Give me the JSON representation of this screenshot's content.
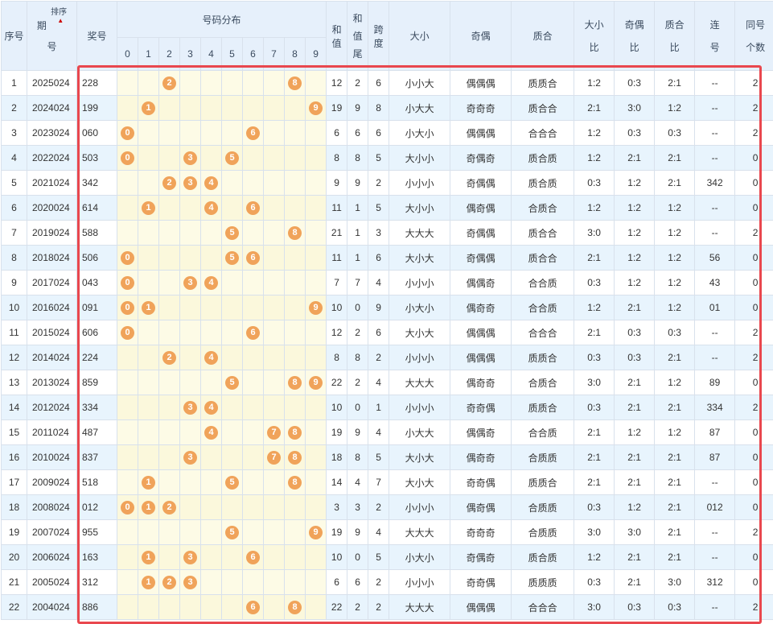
{
  "headers": {
    "seq": "序号",
    "period_a": "期",
    "period_b": "号",
    "sort": "排序",
    "prize": "奖号",
    "dist": "号码分布",
    "digits": [
      "0",
      "1",
      "2",
      "3",
      "4",
      "5",
      "6",
      "7",
      "8",
      "9"
    ],
    "sum_a": "和",
    "sum_b": "值",
    "sumtail_a": "和",
    "sumtail_b": "值",
    "sumtail_c": "尾",
    "span_a": "跨",
    "span_b": "度",
    "bigsmall": "大小",
    "oddeven": "奇偶",
    "primecomp": "质合",
    "bsr_a": "大小",
    "bsr_b": "比",
    "oer_a": "奇偶",
    "oer_b": "比",
    "pcr_a": "质合",
    "pcr_b": "比",
    "consec_a": "连",
    "consec_b": "号",
    "same_a": "同号",
    "same_b": "个数"
  },
  "colors": {
    "ball": "#f0a35a",
    "frame": "#e9474e",
    "header_bg": "#e6f0fb",
    "alt_row": "#e8f4fd",
    "dist_bg": "#fdfbe6"
  },
  "rows": [
    {
      "seq": "1",
      "period": "2025024",
      "prize": "228",
      "digits": [
        2,
        8
      ],
      "sum": "12",
      "tail": "2",
      "span": "6",
      "bs": "小小大",
      "oe": "偶偶偶",
      "pc": "质质合",
      "bsr": "1:2",
      "oer": "0:3",
      "pcr": "2:1",
      "consec": "--",
      "same": "2"
    },
    {
      "seq": "2",
      "period": "2024024",
      "prize": "199",
      "digits": [
        1,
        9
      ],
      "sum": "19",
      "tail": "9",
      "span": "8",
      "bs": "小大大",
      "oe": "奇奇奇",
      "pc": "质合合",
      "bsr": "2:1",
      "oer": "3:0",
      "pcr": "1:2",
      "consec": "--",
      "same": "2"
    },
    {
      "seq": "3",
      "period": "2023024",
      "prize": "060",
      "digits": [
        0,
        6
      ],
      "sum": "6",
      "tail": "6",
      "span": "6",
      "bs": "小大小",
      "oe": "偶偶偶",
      "pc": "合合合",
      "bsr": "1:2",
      "oer": "0:3",
      "pcr": "0:3",
      "consec": "--",
      "same": "2"
    },
    {
      "seq": "4",
      "period": "2022024",
      "prize": "503",
      "digits": [
        0,
        3,
        5
      ],
      "sum": "8",
      "tail": "8",
      "span": "5",
      "bs": "大小小",
      "oe": "奇偶奇",
      "pc": "质合质",
      "bsr": "1:2",
      "oer": "2:1",
      "pcr": "2:1",
      "consec": "--",
      "same": "0"
    },
    {
      "seq": "5",
      "period": "2021024",
      "prize": "342",
      "digits": [
        2,
        3,
        4
      ],
      "sum": "9",
      "tail": "9",
      "span": "2",
      "bs": "小小小",
      "oe": "奇偶偶",
      "pc": "质合质",
      "bsr": "0:3",
      "oer": "1:2",
      "pcr": "2:1",
      "consec": "342",
      "same": "0"
    },
    {
      "seq": "6",
      "period": "2020024",
      "prize": "614",
      "digits": [
        1,
        4,
        6
      ],
      "sum": "11",
      "tail": "1",
      "span": "5",
      "bs": "大小小",
      "oe": "偶奇偶",
      "pc": "合质合",
      "bsr": "1:2",
      "oer": "1:2",
      "pcr": "1:2",
      "consec": "--",
      "same": "0"
    },
    {
      "seq": "7",
      "period": "2019024",
      "prize": "588",
      "digits": [
        5,
        8
      ],
      "sum": "21",
      "tail": "1",
      "span": "3",
      "bs": "大大大",
      "oe": "奇偶偶",
      "pc": "质合合",
      "bsr": "3:0",
      "oer": "1:2",
      "pcr": "1:2",
      "consec": "--",
      "same": "2"
    },
    {
      "seq": "8",
      "period": "2018024",
      "prize": "506",
      "digits": [
        0,
        5,
        6
      ],
      "sum": "11",
      "tail": "1",
      "span": "6",
      "bs": "大小大",
      "oe": "奇偶偶",
      "pc": "质合合",
      "bsr": "2:1",
      "oer": "1:2",
      "pcr": "1:2",
      "consec": "56",
      "same": "0"
    },
    {
      "seq": "9",
      "period": "2017024",
      "prize": "043",
      "digits": [
        0,
        3,
        4
      ],
      "sum": "7",
      "tail": "7",
      "span": "4",
      "bs": "小小小",
      "oe": "偶偶奇",
      "pc": "合合质",
      "bsr": "0:3",
      "oer": "1:2",
      "pcr": "1:2",
      "consec": "43",
      "same": "0"
    },
    {
      "seq": "10",
      "period": "2016024",
      "prize": "091",
      "digits": [
        0,
        1,
        9
      ],
      "sum": "10",
      "tail": "0",
      "span": "9",
      "bs": "小大小",
      "oe": "偶奇奇",
      "pc": "合合质",
      "bsr": "1:2",
      "oer": "2:1",
      "pcr": "1:2",
      "consec": "01",
      "same": "0"
    },
    {
      "seq": "11",
      "period": "2015024",
      "prize": "606",
      "digits": [
        0,
        6
      ],
      "sum": "12",
      "tail": "2",
      "span": "6",
      "bs": "大小大",
      "oe": "偶偶偶",
      "pc": "合合合",
      "bsr": "2:1",
      "oer": "0:3",
      "pcr": "0:3",
      "consec": "--",
      "same": "2"
    },
    {
      "seq": "12",
      "period": "2014024",
      "prize": "224",
      "digits": [
        2,
        4
      ],
      "sum": "8",
      "tail": "8",
      "span": "2",
      "bs": "小小小",
      "oe": "偶偶偶",
      "pc": "质质合",
      "bsr": "0:3",
      "oer": "0:3",
      "pcr": "2:1",
      "consec": "--",
      "same": "2"
    },
    {
      "seq": "13",
      "period": "2013024",
      "prize": "859",
      "digits": [
        5,
        8,
        9
      ],
      "sum": "22",
      "tail": "2",
      "span": "4",
      "bs": "大大大",
      "oe": "偶奇奇",
      "pc": "合质合",
      "bsr": "3:0",
      "oer": "2:1",
      "pcr": "1:2",
      "consec": "89",
      "same": "0"
    },
    {
      "seq": "14",
      "period": "2012024",
      "prize": "334",
      "digits": [
        3,
        4
      ],
      "sum": "10",
      "tail": "0",
      "span": "1",
      "bs": "小小小",
      "oe": "奇奇偶",
      "pc": "质质合",
      "bsr": "0:3",
      "oer": "2:1",
      "pcr": "2:1",
      "consec": "334",
      "same": "2"
    },
    {
      "seq": "15",
      "period": "2011024",
      "prize": "487",
      "digits": [
        4,
        7,
        8
      ],
      "sum": "19",
      "tail": "9",
      "span": "4",
      "bs": "小大大",
      "oe": "偶偶奇",
      "pc": "合合质",
      "bsr": "2:1",
      "oer": "1:2",
      "pcr": "1:2",
      "consec": "87",
      "same": "0"
    },
    {
      "seq": "16",
      "period": "2010024",
      "prize": "837",
      "digits": [
        3,
        7,
        8
      ],
      "sum": "18",
      "tail": "8",
      "span": "5",
      "bs": "大小大",
      "oe": "偶奇奇",
      "pc": "合质质",
      "bsr": "2:1",
      "oer": "2:1",
      "pcr": "2:1",
      "consec": "87",
      "same": "0"
    },
    {
      "seq": "17",
      "period": "2009024",
      "prize": "518",
      "digits": [
        1,
        5,
        8
      ],
      "sum": "14",
      "tail": "4",
      "span": "7",
      "bs": "大小大",
      "oe": "奇奇偶",
      "pc": "质质合",
      "bsr": "2:1",
      "oer": "2:1",
      "pcr": "2:1",
      "consec": "--",
      "same": "0"
    },
    {
      "seq": "18",
      "period": "2008024",
      "prize": "012",
      "digits": [
        0,
        1,
        2
      ],
      "sum": "3",
      "tail": "3",
      "span": "2",
      "bs": "小小小",
      "oe": "偶奇偶",
      "pc": "合质质",
      "bsr": "0:3",
      "oer": "1:2",
      "pcr": "2:1",
      "consec": "012",
      "same": "0"
    },
    {
      "seq": "19",
      "period": "2007024",
      "prize": "955",
      "digits": [
        5,
        9
      ],
      "sum": "19",
      "tail": "9",
      "span": "4",
      "bs": "大大大",
      "oe": "奇奇奇",
      "pc": "合质质",
      "bsr": "3:0",
      "oer": "3:0",
      "pcr": "2:1",
      "consec": "--",
      "same": "2"
    },
    {
      "seq": "20",
      "period": "2006024",
      "prize": "163",
      "digits": [
        1,
        3,
        6
      ],
      "sum": "10",
      "tail": "0",
      "span": "5",
      "bs": "小大小",
      "oe": "奇偶奇",
      "pc": "质合质",
      "bsr": "1:2",
      "oer": "2:1",
      "pcr": "2:1",
      "consec": "--",
      "same": "0"
    },
    {
      "seq": "21",
      "period": "2005024",
      "prize": "312",
      "digits": [
        1,
        2,
        3
      ],
      "sum": "6",
      "tail": "6",
      "span": "2",
      "bs": "小小小",
      "oe": "奇奇偶",
      "pc": "质质质",
      "bsr": "0:3",
      "oer": "2:1",
      "pcr": "3:0",
      "consec": "312",
      "same": "0"
    },
    {
      "seq": "22",
      "period": "2004024",
      "prize": "886",
      "digits": [
        6,
        8
      ],
      "sum": "22",
      "tail": "2",
      "span": "2",
      "bs": "大大大",
      "oe": "偶偶偶",
      "pc": "合合合",
      "bsr": "3:0",
      "oer": "0:3",
      "pcr": "0:3",
      "consec": "--",
      "same": "2"
    }
  ]
}
